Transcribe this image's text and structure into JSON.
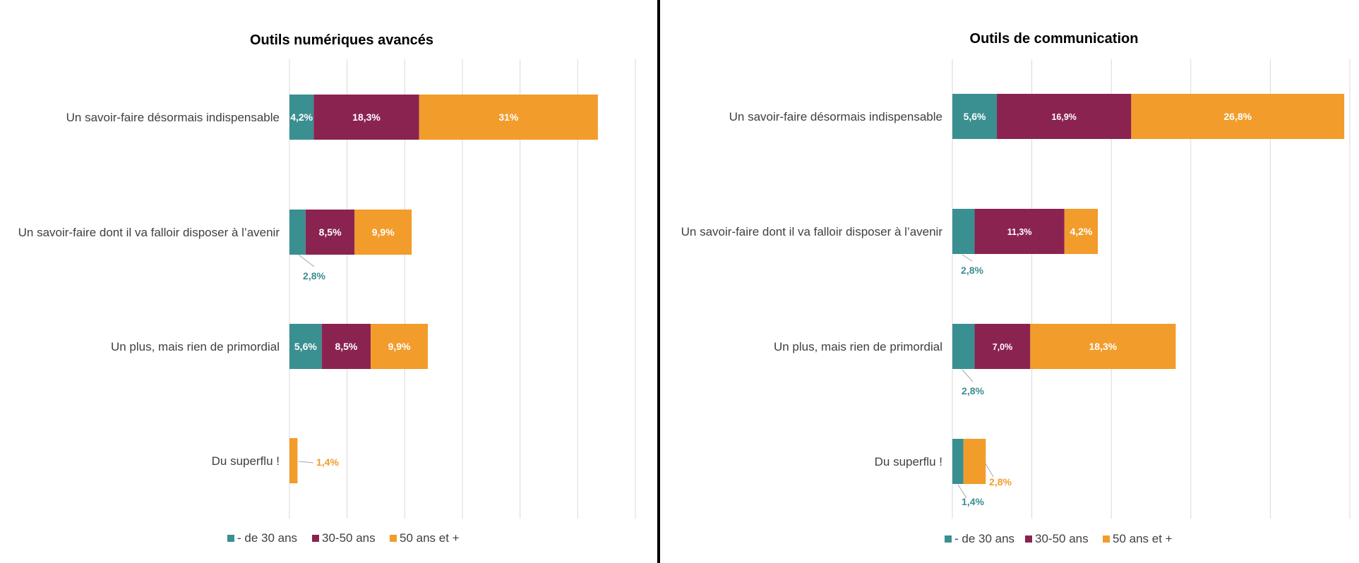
{
  "chart_data": [
    {
      "type": "bar",
      "orientation": "horizontal",
      "stacked": true,
      "title": "Outils numériques avancés",
      "categories": [
        "Un savoir-faire désormais indispensable",
        "Un savoir-faire dont il va falloir disposer à l’avenir",
        "Un plus, mais rien de primordial",
        "Du superflu !"
      ],
      "series": [
        {
          "name": "- de 30 ans",
          "color": "#3a8f91",
          "values": [
            4.2,
            2.8,
            5.6,
            0
          ],
          "labels": [
            "4,2%",
            "2,8%",
            "5,6%",
            ""
          ]
        },
        {
          "name": "30-50 ans",
          "color": "#8b2350",
          "values": [
            18.3,
            8.5,
            8.5,
            0
          ],
          "labels": [
            "18,3%",
            "8,5%",
            "8,5%",
            ""
          ]
        },
        {
          "name": "50 ans et +",
          "color": "#f29c2b",
          "values": [
            31,
            9.9,
            9.9,
            1.4
          ],
          "labels": [
            "31%",
            "9,9%",
            "9,9%",
            "1,4%"
          ]
        }
      ],
      "xlim": [
        0,
        60
      ],
      "grid": true,
      "legend_position": "bottom"
    },
    {
      "type": "bar",
      "orientation": "horizontal",
      "stacked": true,
      "title": "Outils de communication",
      "categories": [
        "Un savoir-faire désormais indispensable",
        "Un savoir-faire dont il va falloir disposer à l’avenir",
        "Un plus, mais rien de primordial",
        "Du superflu !"
      ],
      "series": [
        {
          "name": "- de 30 ans",
          "color": "#3a8f91",
          "values": [
            5.6,
            2.8,
            2.8,
            1.4
          ],
          "labels": [
            "5,6%",
            "2,8%",
            "2,8%",
            "1,4%"
          ]
        },
        {
          "name": "30-50 ans",
          "color": "#8b2350",
          "values": [
            16.9,
            11.3,
            7.0,
            0
          ],
          "labels": [
            "16,9%",
            "11,3%",
            "7,0%",
            ""
          ]
        },
        {
          "name": "50 ans et +",
          "color": "#f29c2b",
          "values": [
            26.8,
            4.2,
            18.3,
            2.8
          ],
          "labels": [
            "26,8%",
            "4,2%",
            "18,3%",
            "2,8%"
          ]
        }
      ],
      "xlim": [
        0,
        50
      ],
      "grid": true,
      "legend_position": "bottom"
    }
  ]
}
